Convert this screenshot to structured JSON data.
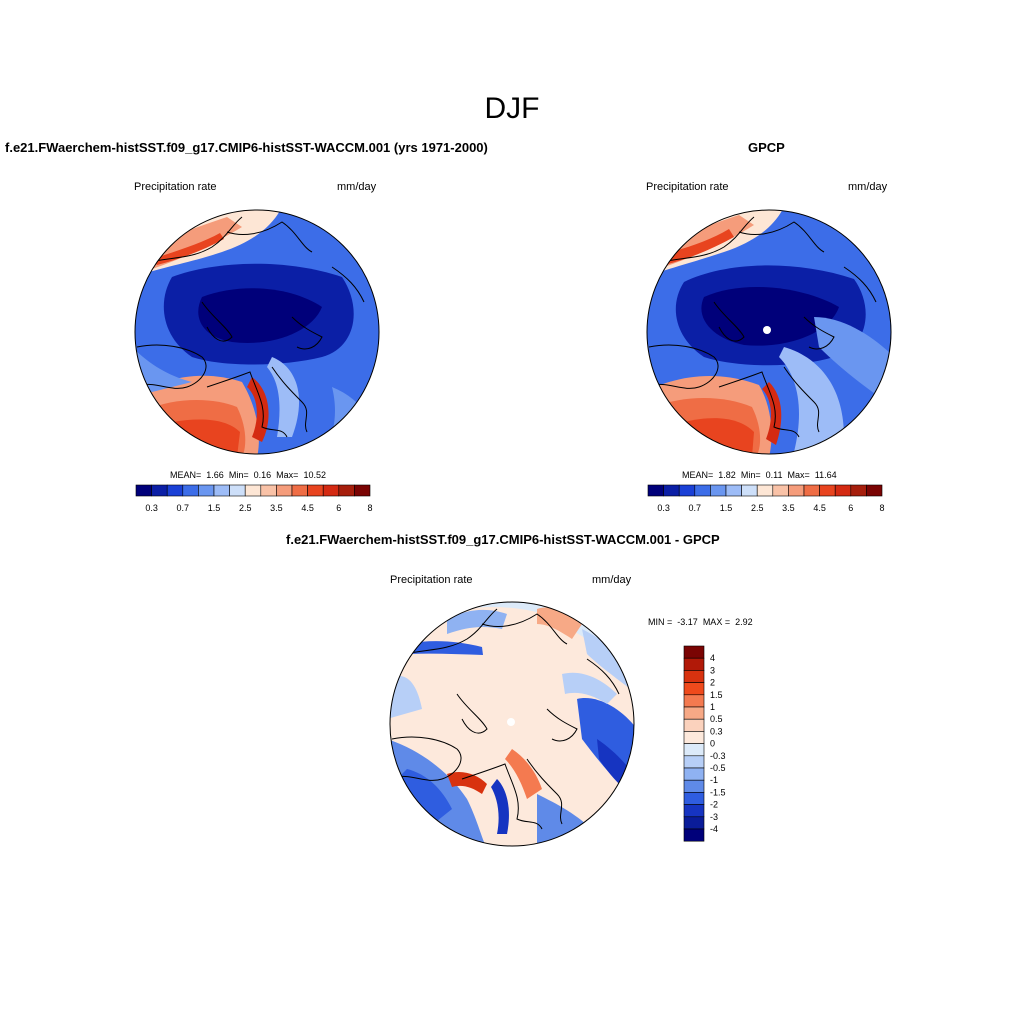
{
  "season": "DJF",
  "panels": [
    {
      "title": "f.e21.FWaerchem-histSST.f09_g17.CMIP6-histSST-WACCM.001 (yrs 1971-2000)",
      "variable": "Precipitation rate",
      "units": "mm/day",
      "stats": {
        "mean_label": "MEAN=",
        "mean": "1.66",
        "min_label": "Min=",
        "min": "0.16",
        "max_label": "Max=",
        "max": "10.52"
      },
      "colorbar_ticks": [
        "0.3",
        "0.7",
        "1.5",
        "2.5",
        "3.5",
        "4.5",
        "6",
        "8"
      ]
    },
    {
      "title": "GPCP",
      "variable": "Precipitation rate",
      "units": "mm/day",
      "stats": {
        "mean_label": "MEAN=",
        "mean": "1.82",
        "min_label": "Min=",
        "min": "0.11",
        "max_label": "Max=",
        "max": "11.64"
      },
      "colorbar_ticks": [
        "0.3",
        "0.7",
        "1.5",
        "2.5",
        "3.5",
        "4.5",
        "6",
        "8"
      ]
    },
    {
      "title": "f.e21.FWaerchem-histSST.f09_g17.CMIP6-histSST-WACCM.001 - GPCP",
      "variable": "Precipitation rate",
      "units": "mm/day",
      "stats": {
        "min_label": "MIN =",
        "min": "-3.17",
        "max_label": "MAX =",
        "max": "2.92"
      },
      "colorbar_ticks": [
        "4",
        "3",
        "2",
        "1.5",
        "1",
        "0.5",
        "0.3",
        "0",
        "-0.3",
        "-0.5",
        "-1",
        "-1.5",
        "-2",
        "-3",
        "-4"
      ]
    }
  ],
  "palettes": {
    "precip": [
      "#00007a",
      "#0b1fa6",
      "#1a40d6",
      "#3c6de8",
      "#6a96f0",
      "#9dbcf7",
      "#cddff9",
      "#fde6d5",
      "#f9c2a7",
      "#f59c7b",
      "#ef6d45",
      "#e8441f",
      "#d42a12",
      "#a61e0c",
      "#7a0403"
    ],
    "diff": [
      "#7a0403",
      "#b11908",
      "#d8320f",
      "#ef4a1c",
      "#f47a50",
      "#f7a986",
      "#fbd2bd",
      "#fde9dc",
      "#dceaf9",
      "#b7cff7",
      "#8fb2f2",
      "#5f8ae8",
      "#2f5de0",
      "#1634c1",
      "#0a1c99",
      "#00007a"
    ]
  }
}
